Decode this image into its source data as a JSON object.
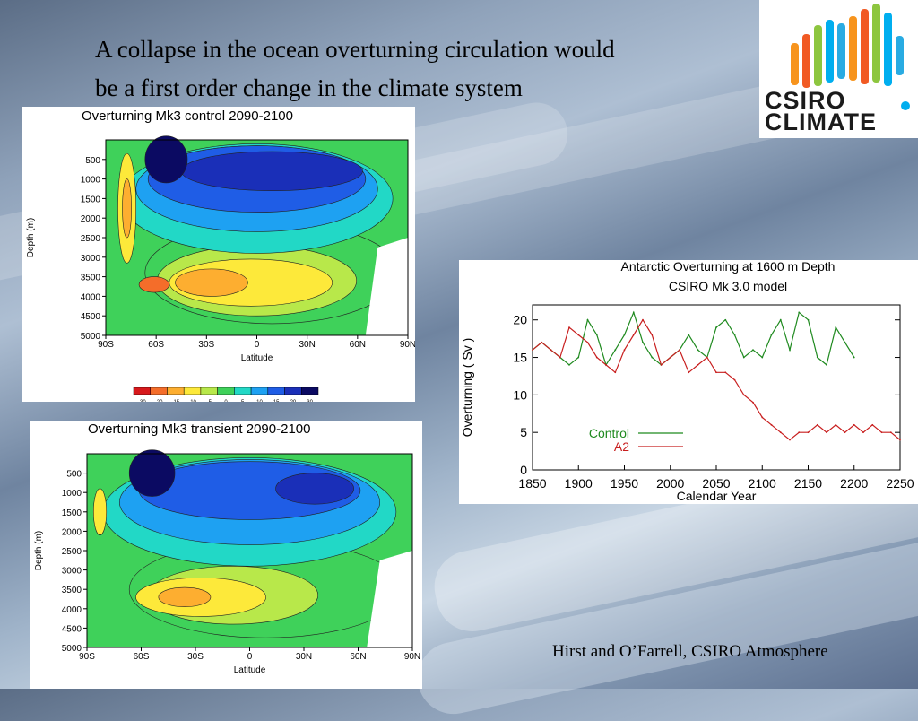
{
  "slide": {
    "title_line1": "A collapse in the ocean overturning circulation would",
    "title_line2": "be a first order change in the climate system",
    "credit": "Hirst and O’Farrell, CSIRO Atmosphere"
  },
  "logo": {
    "line1": "CSIRO",
    "line2": "CLIMATE",
    "colors": [
      "#f7941d",
      "#f15a24",
      "#8dc63f",
      "#00aeef",
      "#29abe2"
    ]
  },
  "chart_data": [
    {
      "type": "heatmap",
      "title": "Overturning  Mk3    control  2090-2100",
      "xlabel": "Latitude",
      "ylabel": "Depth (m)",
      "x_ticks": [
        "90S",
        "60S",
        "30S",
        "0",
        "30N",
        "60N",
        "90N"
      ],
      "y_ticks": [
        "500",
        "1000",
        "1500",
        "2000",
        "2500",
        "3000",
        "3500",
        "4000",
        "4500",
        "5000"
      ],
      "colorbar_ticks": [
        "-30",
        "-20",
        "-15",
        "-10",
        "-5",
        "0",
        "5",
        "10",
        "15",
        "20",
        "30"
      ],
      "colorbar_colors": [
        "#d7191c",
        "#f46d2a",
        "#fdae30",
        "#fde93a",
        "#b8e84a",
        "#3fd15a",
        "#22d8c6",
        "#1ea1f2",
        "#1f5de6",
        "#1a2fb8",
        "#0b0a62"
      ]
    },
    {
      "type": "heatmap",
      "title": "Overturning  Mk3  transient  2090-2100",
      "xlabel": "Latitude",
      "ylabel": "Depth (m)",
      "x_ticks": [
        "90S",
        "60S",
        "30S",
        "0",
        "30N",
        "60N",
        "90N"
      ],
      "y_ticks": [
        "500",
        "1000",
        "1500",
        "2000",
        "2500",
        "3000",
        "3500",
        "4000",
        "4500",
        "5000"
      ]
    },
    {
      "type": "line",
      "title": "Antarctic  Overturning  at  1600 m  Depth",
      "subtitle": "CSIRO Mk 3.0 model",
      "xlabel": "Calendar Year",
      "ylabel": "Overturning  ( Sv )",
      "xlim": [
        1850,
        2250
      ],
      "ylim": [
        0,
        22
      ],
      "x_ticks": [
        1850,
        1900,
        1950,
        2000,
        2050,
        2100,
        2150,
        2200,
        2250
      ],
      "y_ticks": [
        0,
        5,
        10,
        15,
        20
      ],
      "series": [
        {
          "name": "Control",
          "color": "#1f8a1f",
          "x": [
            1850,
            1860,
            1870,
            1880,
            1890,
            1900,
            1910,
            1920,
            1930,
            1940,
            1950,
            1960,
            1970,
            1980,
            1990,
            2000,
            2010,
            2020,
            2030,
            2040,
            2050,
            2060,
            2070,
            2080,
            2090,
            2100,
            2110,
            2120,
            2130,
            2140,
            2150,
            2160,
            2170,
            2180,
            2190,
            2200
          ],
          "y": [
            16,
            17,
            16,
            15,
            14,
            15,
            20,
            18,
            14,
            16,
            18,
            21,
            17,
            15,
            14,
            15,
            16,
            18,
            16,
            15,
            19,
            20,
            18,
            15,
            16,
            15,
            18,
            20,
            16,
            21,
            20,
            15,
            14,
            19,
            17,
            15
          ]
        },
        {
          "name": "A2",
          "color": "#c81e1e",
          "x": [
            1850,
            1860,
            1870,
            1880,
            1890,
            1900,
            1910,
            1920,
            1930,
            1940,
            1950,
            1960,
            1970,
            1980,
            1990,
            2000,
            2010,
            2020,
            2030,
            2040,
            2050,
            2060,
            2070,
            2080,
            2090,
            2100,
            2110,
            2120,
            2130,
            2140,
            2150,
            2160,
            2170,
            2180,
            2190,
            2200,
            2210,
            2220,
            2230,
            2240,
            2250
          ],
          "y": [
            16,
            17,
            16,
            15,
            19,
            18,
            17,
            15,
            14,
            13,
            16,
            18,
            20,
            18,
            14,
            15,
            16,
            13,
            14,
            15,
            13,
            13,
            12,
            10,
            9,
            7,
            6,
            5,
            4,
            5,
            5,
            6,
            5,
            6,
            5,
            6,
            5,
            6,
            5,
            5,
            4
          ]
        }
      ],
      "legend": "inside-bottom-left"
    }
  ]
}
